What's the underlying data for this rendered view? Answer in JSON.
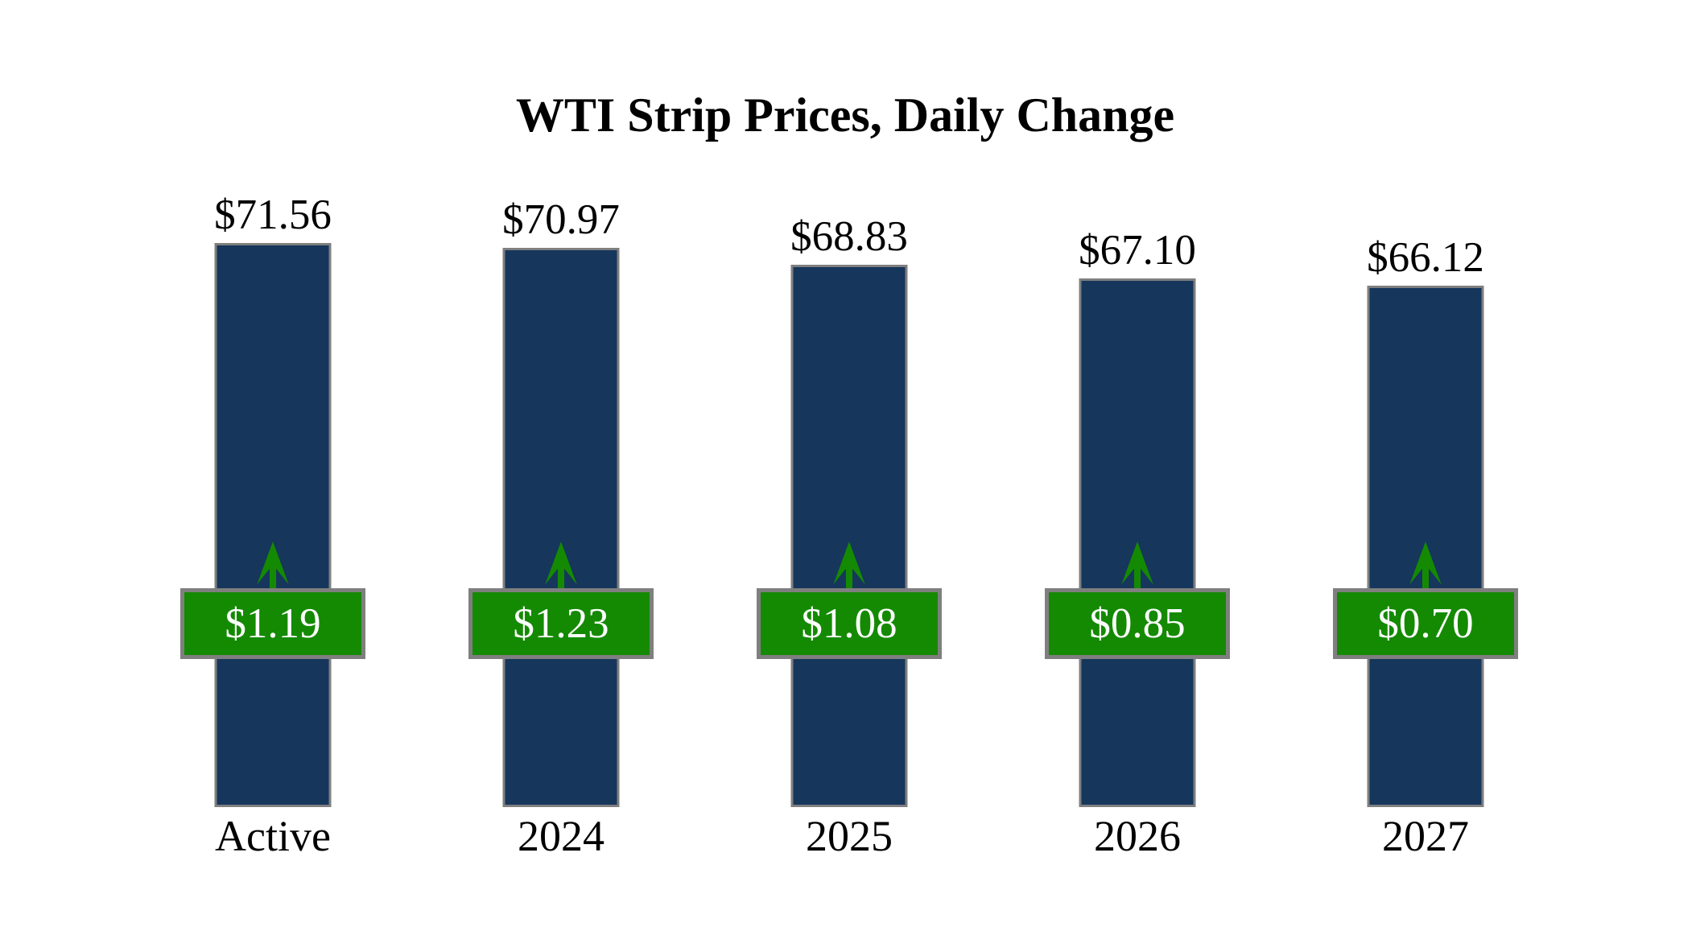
{
  "title": "WTI Strip Prices, Daily Change",
  "chart_data": {
    "type": "bar",
    "title": "WTI Strip Prices, Daily Change",
    "categories": [
      "Active",
      "2024",
      "2025",
      "2026",
      "2027"
    ],
    "series": [
      {
        "name": "WTI Strip Price",
        "values": [
          71.56,
          70.97,
          68.83,
          67.1,
          66.12
        ],
        "labels": [
          "$71.56",
          "$70.97",
          "$68.83",
          "$67.10",
          "$66.12"
        ],
        "label_position": "above-bar"
      },
      {
        "name": "Daily Change",
        "values": [
          1.19,
          1.23,
          1.08,
          0.85,
          0.7
        ],
        "labels": [
          "$1.19",
          "$1.23",
          "$1.08",
          "$0.85",
          "$0.70"
        ],
        "direction": "up",
        "label_position": "badge-on-bar"
      }
    ],
    "xlabel": "",
    "ylabel": "",
    "ylim": [
      0,
      71.56
    ],
    "grid": false,
    "legend": false,
    "axes_visible": false,
    "annotations": "green upward arrow above each daily-change badge",
    "colors": {
      "background": "#FFFFFF",
      "bar_fill": "#16365C",
      "bar_border": "#7F7F7F",
      "change_fill": "#148A02",
      "change_border": "#7F7F7F",
      "change_text": "#FFFFFF",
      "arrow": "#148A02",
      "label_text": "#000000"
    }
  }
}
